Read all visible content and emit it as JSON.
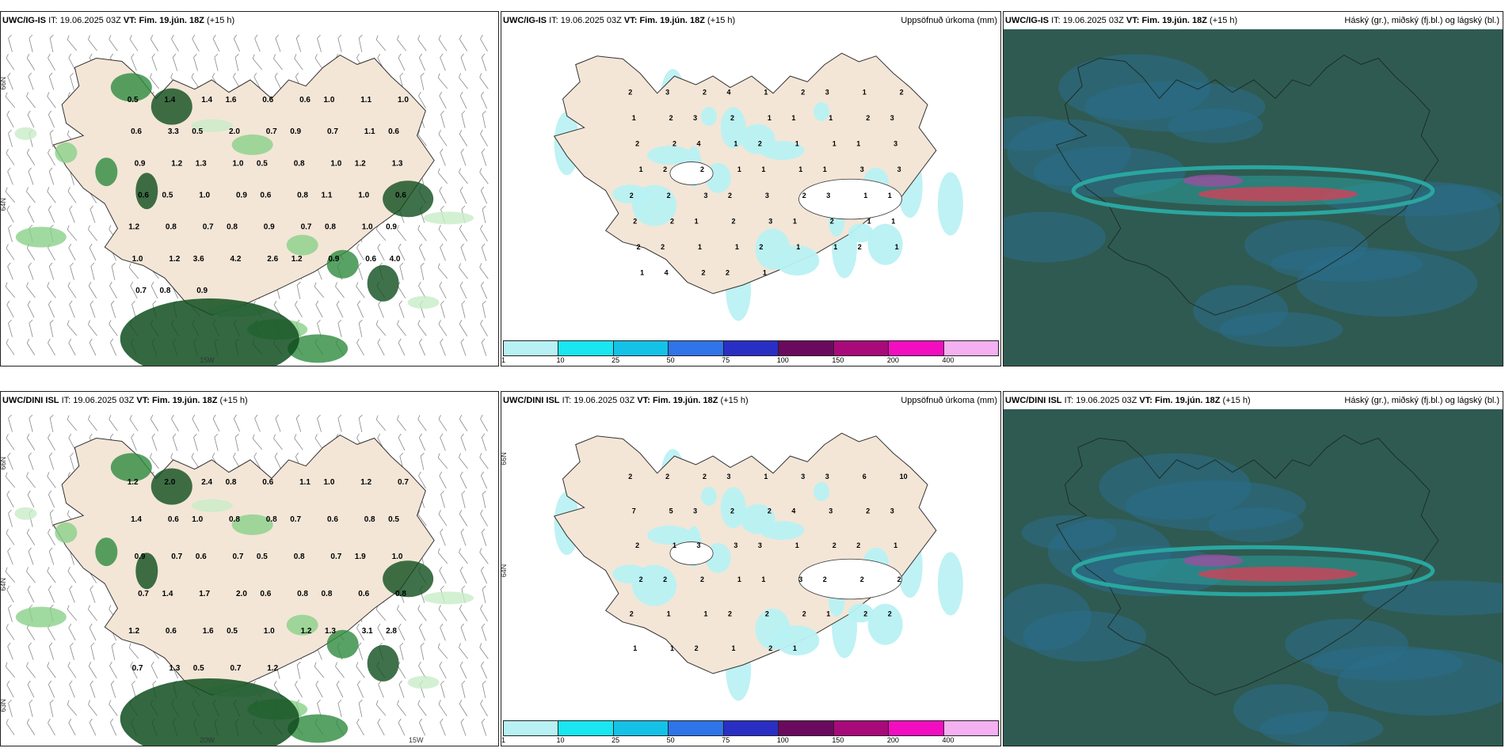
{
  "colors": {
    "land": "#f3e6d7",
    "precip_light": "#b8f1f3",
    "green1": "#c8ecc8",
    "green2": "#8ad18a",
    "green3": "#2e8b3e",
    "green4": "#0f4d1e",
    "cloud_bg": "#2f5a52",
    "cloud_teal": "#2aa6a0",
    "cloud_blue": "#2a6d8a",
    "accent_red": "#c8455a",
    "accent_purple": "#9b4fa0"
  },
  "panels": {
    "top_left": {
      "model": "UWC/IG-IS",
      "it_label": "IT:",
      "it_value": "19.06.2025 03Z",
      "vt_label": "VT:",
      "vt_value": "Fim. 19.jún. 18Z",
      "lead": "(+15 h)",
      "right_label": "",
      "lat_labels": [
        "66N",
        "64N"
      ],
      "lon_labels": [
        "15W"
      ],
      "values": [
        "0.5",
        "1.4",
        "1.4",
        "1.6",
        "0.6",
        "0.6",
        "1.0",
        "1.1",
        "1.0",
        "0.6",
        "3.3",
        "0.5",
        "2.0",
        "0.7",
        "0.9",
        "0.7",
        "1.1",
        "0.6",
        "0.9",
        "1.2",
        "1.3",
        "1.0",
        "0.5",
        "0.8",
        "1.0",
        "1.2",
        "1.3",
        "0.6",
        "0.5",
        "1.0",
        "0.9",
        "0.6",
        "0.8",
        "1.1",
        "1.0",
        "0.6",
        "1.2",
        "0.8",
        "0.7",
        "0.8",
        "0.9",
        "0.7",
        "0.8",
        "1.0",
        "0.9",
        "1.0",
        "1.2",
        "3.6",
        "4.2",
        "2.6",
        "1.2",
        "0.9",
        "0.6",
        "4.0",
        "0.7",
        "0.8",
        "0.9"
      ]
    },
    "top_middle": {
      "model": "UWC/IG-IS",
      "it_label": "IT:",
      "it_value": "19.06.2025 03Z",
      "vt_label": "VT:",
      "vt_value": "Fim. 19.jún. 18Z",
      "lead": "(+15 h)",
      "right_label": "Uppsöfnuð úrkoma (mm)",
      "colorbar": {
        "colors": [
          "#b8f1f3",
          "#19e6f0",
          "#14c2e8",
          "#2f74e8",
          "#2a2fc4",
          "#6a0a5e",
          "#a80a7a",
          "#f20ec0",
          "#f4b0f0"
        ],
        "ticks": [
          "1",
          "10",
          "25",
          "50",
          "75",
          "100",
          "150",
          "200",
          "400"
        ]
      },
      "values": [
        "2",
        "3",
        "2",
        "4",
        "1",
        "2",
        "3",
        "1",
        "2",
        "1",
        "2",
        "3",
        "2",
        "1",
        "1",
        "1",
        "2",
        "3",
        "2",
        "2",
        "4",
        "1",
        "2",
        "1",
        "1",
        "1",
        "3",
        "1",
        "2",
        "2",
        "1",
        "1",
        "1",
        "1",
        "3",
        "3",
        "2",
        "2",
        "3",
        "2",
        "3",
        "2",
        "3",
        "1",
        "1",
        "2",
        "2",
        "1",
        "2",
        "3",
        "1",
        "2",
        "1",
        "1",
        "2",
        "2",
        "1",
        "1",
        "2",
        "1",
        "1",
        "2",
        "1",
        "1",
        "4",
        "2",
        "2",
        "1"
      ]
    },
    "top_right": {
      "model": "UWC/IG-IS",
      "it_label": "IT:",
      "it_value": "19.06.2025 03Z",
      "vt_label": "VT:",
      "vt_value": "Fim. 19.jún. 18Z",
      "lead": "(+15 h)",
      "right_label": "Háský (gr.), miðský (fj.bl.) og lágský (bl.)"
    },
    "bottom_left": {
      "model": "UWC/DINI ISL",
      "it_label": "IT:",
      "it_value": "19.06.2025 03Z",
      "vt_label": "VT:",
      "vt_value": "Fim. 19.jún. 18Z",
      "lead": "(+15 h)",
      "right_label": "",
      "lat_labels": [
        "66N",
        "64N",
        "63N"
      ],
      "lon_labels": [
        "20W",
        "15W"
      ],
      "values": [
        "1.2",
        "2.0",
        "2.4",
        "0.8",
        "0.6",
        "1.1",
        "1.0",
        "1.2",
        "0.7",
        "1.4",
        "0.6",
        "1.0",
        "0.8",
        "0.8",
        "0.7",
        "0.6",
        "0.8",
        "0.5",
        "0.9",
        "0.7",
        "0.6",
        "0.7",
        "0.5",
        "0.8",
        "0.7",
        "1.9",
        "1.0",
        "0.7",
        "1.4",
        "1.7",
        "2.0",
        "0.6",
        "0.8",
        "0.8",
        "0.6",
        "0.8",
        "1.2",
        "0.6",
        "1.6",
        "0.5",
        "1.0",
        "1.2",
        "1.3",
        "3.1",
        "2.8",
        "0.7",
        "1.3",
        "0.5",
        "0.7",
        "1.2"
      ]
    },
    "bottom_middle": {
      "model": "UWC/DINI ISL",
      "it_label": "IT:",
      "it_value": "19.06.2025 03Z",
      "vt_label": "VT:",
      "vt_value": "Fim. 19.jún. 18Z",
      "lead": "(+15 h)",
      "right_label": "Uppsöfnuð úrkoma (mm)",
      "lat_labels": [
        "66N",
        "64N"
      ],
      "colorbar": {
        "colors": [
          "#b8f1f3",
          "#19e6f0",
          "#14c2e8",
          "#2f74e8",
          "#2a2fc4",
          "#6a0a5e",
          "#a80a7a",
          "#f20ec0",
          "#f4b0f0"
        ],
        "ticks": [
          "1",
          "10",
          "25",
          "50",
          "75",
          "100",
          "150",
          "200",
          "400"
        ]
      },
      "values": [
        "2",
        "2",
        "2",
        "3",
        "1",
        "3",
        "3",
        "6",
        "10",
        "7",
        "5",
        "3",
        "2",
        "2",
        "4",
        "3",
        "2",
        "3",
        "2",
        "1",
        "3",
        "3",
        "3",
        "1",
        "2",
        "2",
        "1",
        "2",
        "2",
        "2",
        "1",
        "1",
        "3",
        "2",
        "2",
        "2",
        "2",
        "1",
        "1",
        "2",
        "2",
        "2",
        "1",
        "2",
        "2",
        "1",
        "1",
        "2",
        "1",
        "2",
        "1"
      ]
    },
    "bottom_right": {
      "model": "UWC/DINI ISL",
      "it_label": "IT:",
      "it_value": "19.06.2025 03Z",
      "vt_label": "VT:",
      "vt_value": "Fim. 19.jún. 18Z",
      "lead": "(+15 h)",
      "right_label": "Háský (gr.), miðský (fj.bl.) og lágský (bl.)"
    }
  }
}
